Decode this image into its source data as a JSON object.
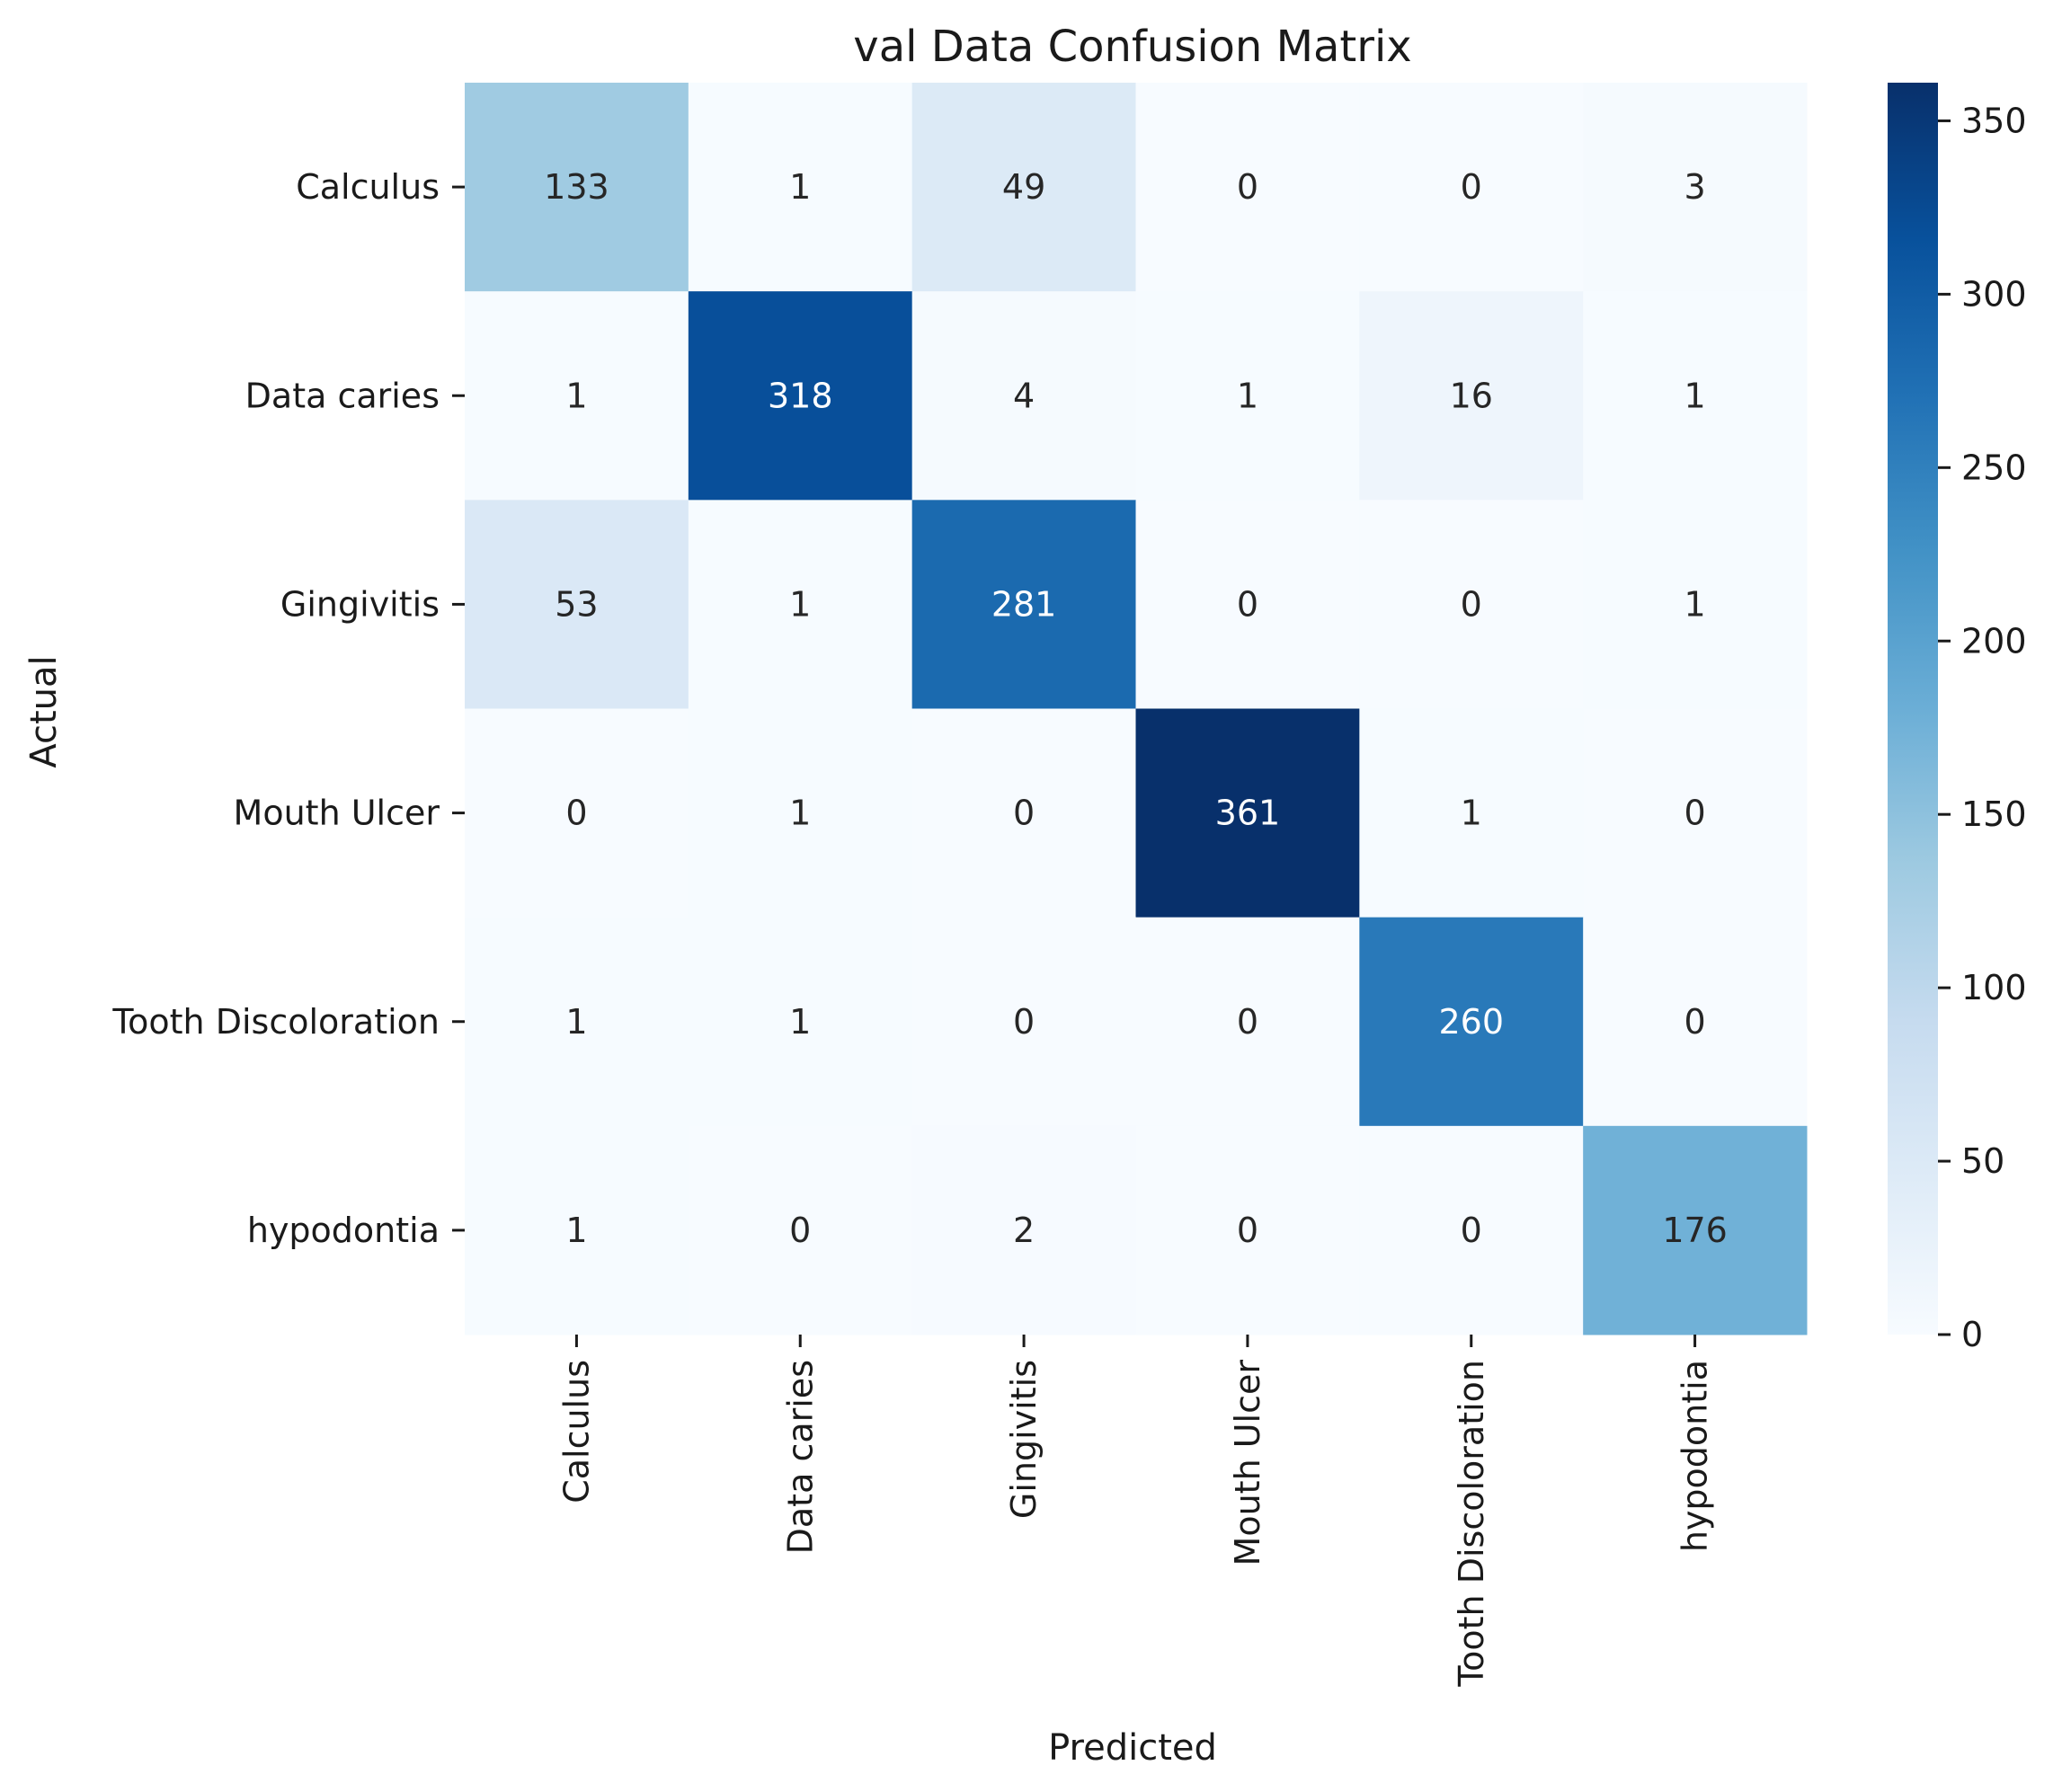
{
  "chart_data": {
    "type": "heatmap",
    "title": "val Data Confusion Matrix",
    "xlabel": "Predicted",
    "ylabel": "Actual",
    "x_categories": [
      "Calculus",
      "Data caries",
      "Gingivitis",
      "Mouth Ulcer",
      "Tooth Discoloration",
      "hypodontia"
    ],
    "y_categories": [
      "Calculus",
      "Data caries",
      "Gingivitis",
      "Mouth Ulcer",
      "Tooth Discoloration",
      "hypodontia"
    ],
    "values": [
      [
        133,
        1,
        49,
        0,
        0,
        3
      ],
      [
        1,
        318,
        4,
        1,
        16,
        1
      ],
      [
        53,
        1,
        281,
        0,
        0,
        1
      ],
      [
        0,
        1,
        0,
        361,
        1,
        0
      ],
      [
        1,
        1,
        0,
        0,
        260,
        0
      ],
      [
        1,
        0,
        2,
        0,
        0,
        176
      ]
    ],
    "colormap": "Blues",
    "colorbar": {
      "range": [
        0,
        361
      ],
      "ticks": [
        0,
        50,
        100,
        150,
        200,
        250,
        300,
        350
      ]
    },
    "annotations": "cell counts shown in each cell"
  }
}
